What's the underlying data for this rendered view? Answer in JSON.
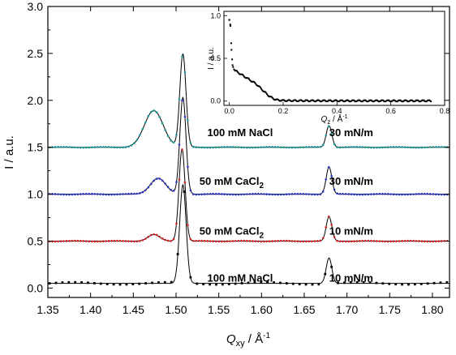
{
  "chart_data": [
    {
      "type": "scatter",
      "subtype": "offset line with markers",
      "xlabel": "Q",
      "xlabel_sub": "xy",
      "xlabel_unit": " / Å",
      "xlabel_unit_sup": "-1",
      "ylabel": "I / a.u.",
      "xlim": [
        1.35,
        1.82
      ],
      "ylim": [
        -0.1,
        3.0
      ],
      "grid": false,
      "xticks": [
        "1.35",
        "1.40",
        "1.45",
        "1.50",
        "1.55",
        "1.60",
        "1.65",
        "1.70",
        "1.75",
        "1.80"
      ],
      "yticks": [
        "0.0",
        "0.5",
        "1.0",
        "1.5",
        "2.0",
        "2.5",
        "3.0"
      ],
      "annotations": [
        {
          "condition": "100 mM NaCl",
          "sub": "",
          "pressure": "30 mN/m",
          "x": 1.575,
          "y": 1.62,
          "px": 1.705
        },
        {
          "condition": "50 mM CaCl",
          "sub": "2",
          "pressure": "30 mN/m",
          "x": 1.565,
          "y": 1.1,
          "px": 1.705
        },
        {
          "condition": "50 mM CaCl",
          "sub": "2",
          "pressure": "10 mN/m",
          "x": 1.565,
          "y": 0.57,
          "px": 1.705
        },
        {
          "condition": "100 mM NaCl",
          "sub": "",
          "pressure": "10 mN/m",
          "x": 1.575,
          "y": 0.07,
          "px": 1.705
        }
      ],
      "series": [
        {
          "color": "#000000",
          "marker": "square",
          "baseline": 0.05,
          "noise": 0.012,
          "spacing": 0.0075,
          "peaks": [
            {
              "c": 1.508,
              "h": 1.05,
              "w": 0.0038
            },
            {
              "c": 1.679,
              "h": 0.27,
              "w": 0.0033
            }
          ]
        },
        {
          "color": "#d62020",
          "marker": "circle",
          "baseline": 0.5,
          "noise": 0.004,
          "spacing": 0.0033,
          "peaks": [
            {
              "c": 1.474,
              "h": 0.07,
              "w": 0.007
            },
            {
              "c": 1.507,
              "h": 0.98,
              "w": 0.0036
            },
            {
              "c": 1.679,
              "h": 0.26,
              "w": 0.0033
            }
          ]
        },
        {
          "color": "#2a34c8",
          "marker": "circle",
          "baseline": 1.0,
          "noise": 0.004,
          "spacing": 0.0033,
          "peaks": [
            {
              "c": 1.479,
              "h": 0.17,
              "w": 0.009
            },
            {
              "c": 1.508,
              "h": 1.03,
              "w": 0.0036
            },
            {
              "c": 1.679,
              "h": 0.29,
              "w": 0.0033
            }
          ]
        },
        {
          "color": "#1a9a98",
          "marker": "circle",
          "baseline": 1.5,
          "noise": 0.004,
          "spacing": 0.0033,
          "peaks": [
            {
              "c": 1.474,
              "h": 0.39,
              "w": 0.011
            },
            {
              "c": 1.508,
              "h": 0.99,
              "w": 0.0036
            },
            {
              "c": 1.679,
              "h": 0.23,
              "w": 0.0033
            }
          ]
        }
      ]
    },
    {
      "type": "scatter",
      "role": "inset",
      "xlabel": "Q",
      "xlabel_sub": "z",
      "xlabel_unit": " / Å",
      "xlabel_unit_sup": "-1",
      "ylabel": "I / a.u.",
      "xlim": [
        -0.02,
        0.8
      ],
      "ylim": [
        -0.05,
        1.05
      ],
      "xticks": [
        "0.0",
        "0.2",
        "0.4",
        "0.6",
        "0.8"
      ],
      "yticks": [
        "0.0",
        "0.5",
        "1.0"
      ],
      "points": [
        [
          0.0,
          0.95
        ],
        [
          0.004,
          0.88
        ],
        [
          0.008,
          0.6
        ],
        [
          0.012,
          0.42
        ],
        [
          0.02,
          0.36
        ],
        [
          0.03,
          0.34
        ],
        [
          0.04,
          0.32
        ],
        [
          0.05,
          0.3
        ],
        [
          0.06,
          0.28
        ],
        [
          0.07,
          0.26
        ],
        [
          0.08,
          0.24
        ],
        [
          0.09,
          0.22
        ],
        [
          0.1,
          0.2
        ],
        [
          0.11,
          0.17
        ],
        [
          0.12,
          0.14
        ],
        [
          0.13,
          0.11
        ],
        [
          0.14,
          0.08
        ],
        [
          0.15,
          0.055
        ],
        [
          0.16,
          0.035
        ],
        [
          0.17,
          0.02
        ],
        [
          0.18,
          0.012
        ],
        [
          0.2,
          0.006
        ],
        [
          0.3,
          0.004
        ],
        [
          0.5,
          0.003
        ],
        [
          0.75,
          0.003
        ]
      ]
    }
  ]
}
